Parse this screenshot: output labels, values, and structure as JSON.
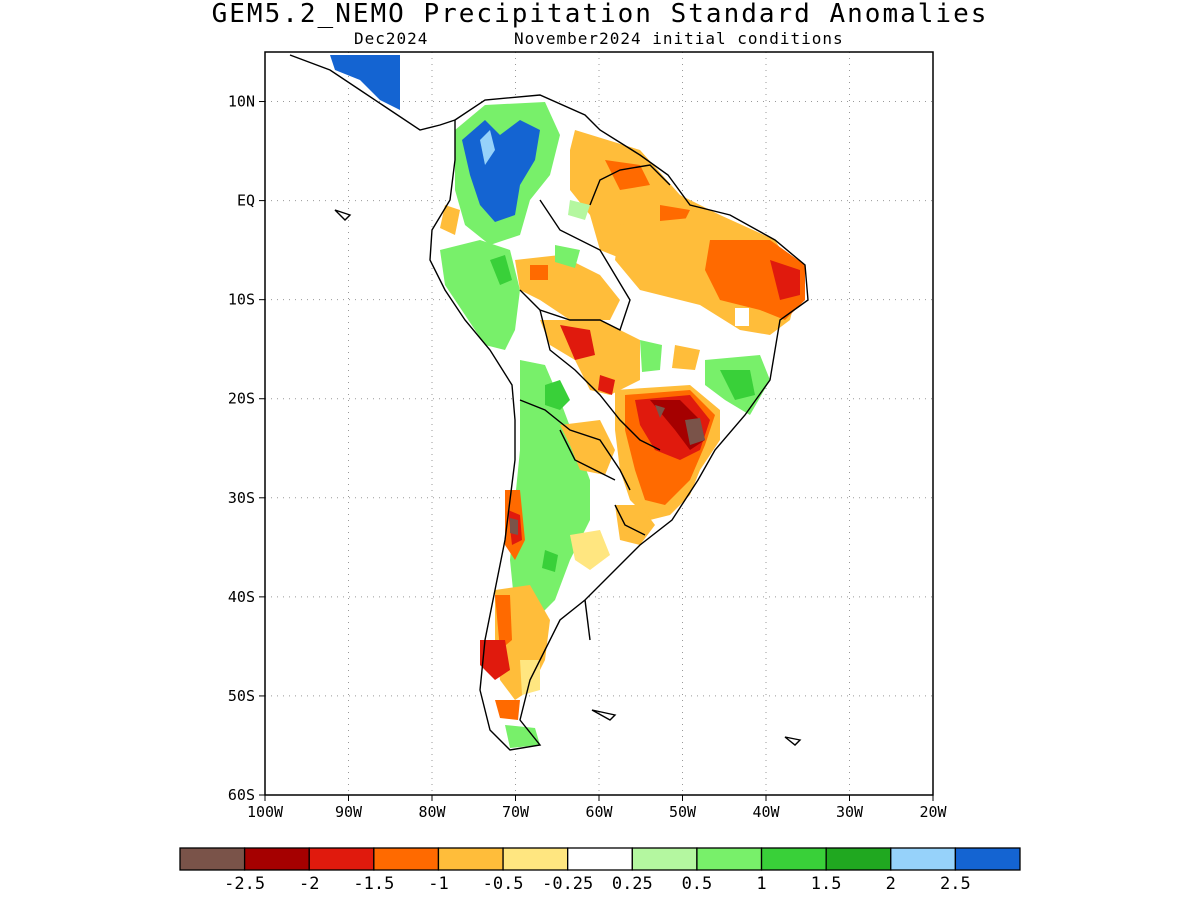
{
  "header": {
    "title": "GEM5.2_NEMO Precipitation Standard Anomalies",
    "valid_month": "Dec2024",
    "init": "November2024 initial conditions"
  },
  "axes": {
    "lat_labels": [
      "10N",
      "EQ",
      "10S",
      "20S",
      "30S",
      "40S",
      "50S",
      "60S"
    ],
    "lon_labels": [
      "100W",
      "90W",
      "80W",
      "70W",
      "60W",
      "50W",
      "40W",
      "30W",
      "20W"
    ],
    "lon_range": [
      -100,
      -20
    ],
    "lat_range": [
      -60,
      15
    ],
    "grid": true
  },
  "colorbar": {
    "colors": [
      "#7a5349",
      "#a50000",
      "#e01a0d",
      "#ff6a00",
      "#ffbd3a",
      "#ffe680",
      "#ffffff",
      "#b4f7a0",
      "#78f06a",
      "#39d039",
      "#20a820",
      "#96d2fa",
      "#1464d2"
    ],
    "labels": [
      "-2.5",
      "-2",
      "-1.5",
      "-1",
      "-0.5",
      "-0.25",
      "0.25",
      "0.5",
      "1",
      "1.5",
      "2",
      "2.5"
    ]
  },
  "colors": {
    "coast": "#000000",
    "background": "#ffffff"
  }
}
